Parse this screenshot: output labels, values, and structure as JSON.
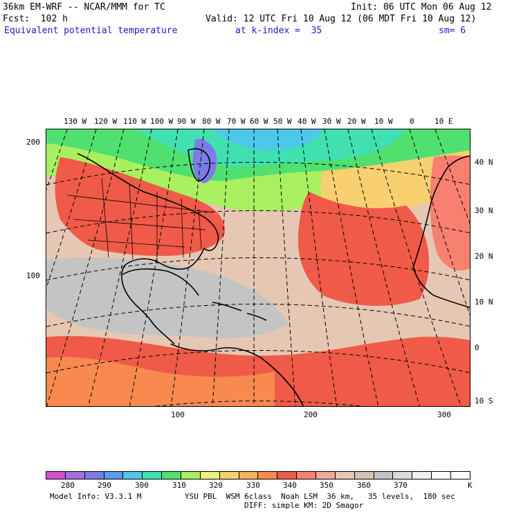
{
  "header": {
    "model": "36km EM-WRF -- NCAR/MMM for TC",
    "init": "Init: 06 UTC Mon 06 Aug 12",
    "fcst": "Fcst:  102 h",
    "valid": "Valid: 12 UTC Fri 10 Aug 12 (06 MDT Fri 10 Aug 12)",
    "field": "Equivalent potential temperature",
    "level": "at k-index =  35",
    "smooth": "sm= 6"
  },
  "map": {
    "lon_labels": [
      "130 W",
      "120 W",
      "110 W",
      "100 W",
      "90 W",
      "80 W",
      "70 W",
      "60 W",
      "50 W",
      "40 W",
      "30 W",
      "20 W",
      "10 W",
      "0",
      "10 E"
    ],
    "lat_labels": [
      "40 N",
      "30 N",
      "20 N",
      "10 N",
      "0",
      "10 S"
    ],
    "left_ticks": [
      "200",
      "100"
    ],
    "bottom_ticks": [
      "100",
      "200",
      "300"
    ]
  },
  "colorbar": {
    "colors": [
      "#d050d0",
      "#a070e0",
      "#7c7ce8",
      "#5a9aef",
      "#4ec8e8",
      "#40e0b0",
      "#50e070",
      "#a8f060",
      "#ecf080",
      "#f8d070",
      "#f7b060",
      "#f88a50",
      "#f05a48",
      "#f88070",
      "#f5a898",
      "#e6c7b4",
      "#d6c2b2",
      "#c4c4c4",
      "#dcdcdc",
      "#f0f0f0",
      "#ffffff",
      "#ffffff"
    ],
    "labels": [
      "280",
      "290",
      "300",
      "310",
      "320",
      "330",
      "340",
      "350",
      "360",
      "370"
    ],
    "unit": "K"
  },
  "footer": {
    "model_info": "Model Info: V3.3.1 M",
    "physics_1": "YSU PBL  WSM 6class  Noah LSM  36 km,   35 levels,  180 sec",
    "physics_2": "DIFF: simple KM: 2D Smagor"
  }
}
